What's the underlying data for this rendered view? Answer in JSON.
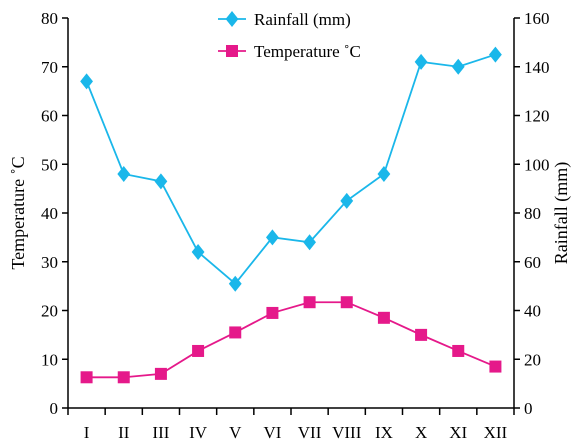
{
  "colors": {
    "rainfall": "#1ab7ea",
    "temperature": "#e5198a",
    "axis": "#000000"
  },
  "chart_data": {
    "type": "line",
    "categories": [
      "I",
      "II",
      "III",
      "IV",
      "V",
      "VI",
      "VII",
      "VIII",
      "IX",
      "X",
      "XI",
      "XII"
    ],
    "series": [
      {
        "name": "Rainfall (mm)",
        "axis": "right",
        "marker": "diamond",
        "values": [
          134,
          96,
          93,
          64,
          51,
          70,
          68,
          85,
          96,
          142,
          140,
          145
        ]
      },
      {
        "name": "Temperature ˚C",
        "axis": "left",
        "marker": "square",
        "values": [
          6.3,
          6.3,
          7,
          11.7,
          15.5,
          19.5,
          21.7,
          21.7,
          18.5,
          15,
          11.7,
          8.5
        ]
      }
    ],
    "ylabel_left": "Temperature ˚C",
    "ylabel_right": "Rainfall (mm)",
    "ylim_left": [
      0,
      80
    ],
    "ylim_right": [
      0,
      160
    ],
    "yticks_left": [
      "0",
      "10",
      "20",
      "30",
      "40",
      "50",
      "60",
      "70",
      "80"
    ],
    "yticks_right": [
      "0",
      "20",
      "40",
      "60",
      "80",
      "100",
      "120",
      "140",
      "160"
    ],
    "grid": false,
    "legend_position": "top-center"
  }
}
